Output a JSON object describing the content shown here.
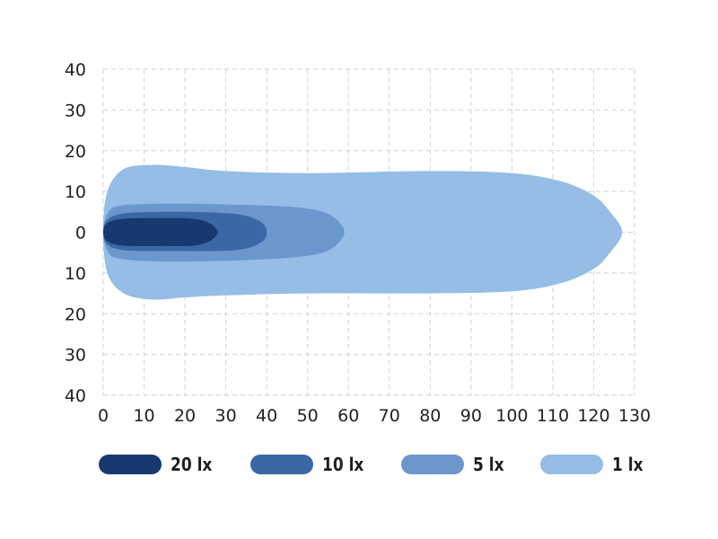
{
  "chart_data": {
    "type": "area",
    "title": "",
    "xlabel": "",
    "ylabel": "",
    "xlim": [
      0,
      130
    ],
    "ylim": [
      -40,
      40
    ],
    "x_ticks": [
      0,
      10,
      20,
      30,
      40,
      50,
      60,
      70,
      80,
      90,
      100,
      110,
      120,
      130
    ],
    "y_ticks": [
      40,
      30,
      20,
      10,
      0,
      10,
      20,
      30,
      40
    ],
    "y_tick_values": [
      40,
      30,
      20,
      10,
      0,
      -10,
      -20,
      -30,
      -40
    ],
    "grid": true,
    "legend_position": "bottom",
    "series": [
      {
        "name": "1 lx",
        "color": "#95bde5",
        "outline": [
          [
            0,
            0
          ],
          [
            1,
            10
          ],
          [
            5,
            15.5
          ],
          [
            12,
            16.5
          ],
          [
            20,
            16
          ],
          [
            30,
            15
          ],
          [
            50,
            14.5
          ],
          [
            80,
            15
          ],
          [
            100,
            14.5
          ],
          [
            112,
            12.5
          ],
          [
            120,
            9
          ],
          [
            124,
            5
          ],
          [
            127,
            0
          ],
          [
            124,
            -5
          ],
          [
            120,
            -9
          ],
          [
            112,
            -12.5
          ],
          [
            100,
            -14.5
          ],
          [
            80,
            -15
          ],
          [
            50,
            -15
          ],
          [
            30,
            -15.5
          ],
          [
            20,
            -16
          ],
          [
            12,
            -16.5
          ],
          [
            5,
            -15
          ],
          [
            1,
            -10
          ]
        ]
      },
      {
        "name": "5 lx",
        "color": "#6b97cd",
        "outline": [
          [
            0,
            0
          ],
          [
            1,
            4.5
          ],
          [
            4,
            6.5
          ],
          [
            15,
            7
          ],
          [
            30,
            6.8
          ],
          [
            45,
            6.3
          ],
          [
            53,
            5.2
          ],
          [
            57,
            3.2
          ],
          [
            59,
            0
          ],
          [
            57,
            -3.2
          ],
          [
            53,
            -5.2
          ],
          [
            45,
            -6.3
          ],
          [
            30,
            -7
          ],
          [
            15,
            -7.2
          ],
          [
            4,
            -6.5
          ],
          [
            1,
            -4.5
          ]
        ]
      },
      {
        "name": "10 lx",
        "color": "#3c67a7",
        "outline": [
          [
            0,
            0
          ],
          [
            1,
            3
          ],
          [
            5,
            4.6
          ],
          [
            15,
            5
          ],
          [
            28,
            4.8
          ],
          [
            35,
            4
          ],
          [
            39,
            2.2
          ],
          [
            40,
            0
          ],
          [
            39,
            -2.2
          ],
          [
            35,
            -4
          ],
          [
            28,
            -4.6
          ],
          [
            15,
            -4.6
          ],
          [
            5,
            -4.4
          ],
          [
            1,
            -3
          ]
        ]
      },
      {
        "name": "20 lx",
        "color": "#17396f",
        "outline": [
          [
            0,
            0
          ],
          [
            1,
            2.2
          ],
          [
            5,
            3.3
          ],
          [
            15,
            3.5
          ],
          [
            22,
            3.3
          ],
          [
            26,
            2.2
          ],
          [
            28,
            0
          ],
          [
            26,
            -2.2
          ],
          [
            22,
            -3.3
          ],
          [
            15,
            -3.4
          ],
          [
            5,
            -3.3
          ],
          [
            1,
            -2.2
          ]
        ]
      }
    ]
  },
  "legend": [
    {
      "label": "20 lx",
      "color": "#17396f"
    },
    {
      "label": "10 lx",
      "color": "#3c67a7"
    },
    {
      "label": "5 lx",
      "color": "#6b97cd"
    },
    {
      "label": "1 lx",
      "color": "#95bde5"
    }
  ]
}
